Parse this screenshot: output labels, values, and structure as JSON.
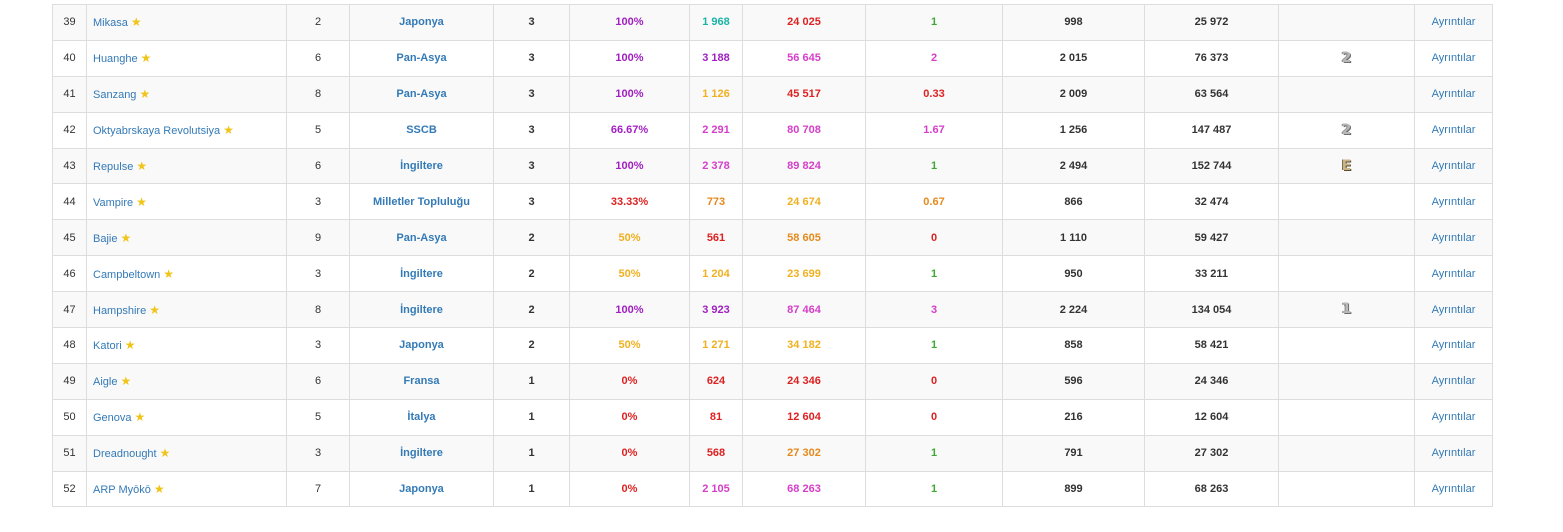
{
  "detail_label": "Ayrıntılar",
  "colors": {
    "link": "#337ab7",
    "red": "#dd2222",
    "orange": "#e58a1d",
    "yellow": "#f0b020",
    "green": "#3fa834",
    "teal": "#19b3a7",
    "purple": "#a11fc2",
    "magenta": "#d53ec8",
    "star": "#f0c419"
  },
  "rows": [
    {
      "rank": "39",
      "ship": "Mikasa",
      "tier": "2",
      "nation": "Japonya",
      "battles": "3",
      "winrate": "100%",
      "winrate_color": "purple",
      "dmg": "1 968",
      "dmg_color": "teal",
      "xp": "24 025",
      "xp_color": "red",
      "kills": "1",
      "kills_color": "green",
      "avg_frags": "998",
      "total": "25 972",
      "medal": ""
    },
    {
      "rank": "40",
      "ship": "Huanghe",
      "tier": "6",
      "nation": "Pan-Asya",
      "battles": "3",
      "winrate": "100%",
      "winrate_color": "purple",
      "dmg": "3 188",
      "dmg_color": "purple",
      "xp": "56 645",
      "xp_color": "magenta",
      "kills": "2",
      "kills_color": "magenta",
      "avg_frags": "2 015",
      "total": "76 373",
      "medal": "2"
    },
    {
      "rank": "41",
      "ship": "Sanzang",
      "tier": "8",
      "nation": "Pan-Asya",
      "battles": "3",
      "winrate": "100%",
      "winrate_color": "purple",
      "dmg": "1 126",
      "dmg_color": "yellow",
      "xp": "45 517",
      "xp_color": "red",
      "kills": "0.33",
      "kills_color": "red",
      "avg_frags": "2 009",
      "total": "63 564",
      "medal": ""
    },
    {
      "rank": "42",
      "ship": "Oktyabrskaya Revolutsiya",
      "tier": "5",
      "nation": "SSCB",
      "battles": "3",
      "winrate": "66.67%",
      "winrate_color": "purple",
      "dmg": "2 291",
      "dmg_color": "magenta",
      "xp": "80 708",
      "xp_color": "magenta",
      "kills": "1.67",
      "kills_color": "magenta",
      "avg_frags": "1 256",
      "total": "147 487",
      "medal": "2"
    },
    {
      "rank": "43",
      "ship": "Repulse",
      "tier": "6",
      "nation": "İngiltere",
      "battles": "3",
      "winrate": "100%",
      "winrate_color": "purple",
      "dmg": "2 378",
      "dmg_color": "magenta",
      "xp": "89 824",
      "xp_color": "magenta",
      "kills": "1",
      "kills_color": "green",
      "avg_frags": "2 494",
      "total": "152 744",
      "medal": "E"
    },
    {
      "rank": "44",
      "ship": "Vampire",
      "tier": "3",
      "nation": "Milletler Topluluğu",
      "battles": "3",
      "winrate": "33.33%",
      "winrate_color": "red",
      "dmg": "773",
      "dmg_color": "orange",
      "xp": "24 674",
      "xp_color": "yellow",
      "kills": "0.67",
      "kills_color": "orange",
      "avg_frags": "866",
      "total": "32 474",
      "medal": ""
    },
    {
      "rank": "45",
      "ship": "Bajie",
      "tier": "9",
      "nation": "Pan-Asya",
      "battles": "2",
      "winrate": "50%",
      "winrate_color": "yellow",
      "dmg": "561",
      "dmg_color": "red",
      "xp": "58 605",
      "xp_color": "orange",
      "kills": "0",
      "kills_color": "red",
      "avg_frags": "1 110",
      "total": "59 427",
      "medal": ""
    },
    {
      "rank": "46",
      "ship": "Campbeltown",
      "tier": "3",
      "nation": "İngiltere",
      "battles": "2",
      "winrate": "50%",
      "winrate_color": "yellow",
      "dmg": "1 204",
      "dmg_color": "yellow",
      "xp": "23 699",
      "xp_color": "yellow",
      "kills": "1",
      "kills_color": "green",
      "avg_frags": "950",
      "total": "33 211",
      "medal": ""
    },
    {
      "rank": "47",
      "ship": "Hampshire",
      "tier": "8",
      "nation": "İngiltere",
      "battles": "2",
      "winrate": "100%",
      "winrate_color": "purple",
      "dmg": "3 923",
      "dmg_color": "purple",
      "xp": "87 464",
      "xp_color": "magenta",
      "kills": "3",
      "kills_color": "magenta",
      "avg_frags": "2 224",
      "total": "134 054",
      "medal": "1"
    },
    {
      "rank": "48",
      "ship": "Katori",
      "tier": "3",
      "nation": "Japonya",
      "battles": "2",
      "winrate": "50%",
      "winrate_color": "yellow",
      "dmg": "1 271",
      "dmg_color": "yellow",
      "xp": "34 182",
      "xp_color": "yellow",
      "kills": "1",
      "kills_color": "green",
      "avg_frags": "858",
      "total": "58 421",
      "medal": ""
    },
    {
      "rank": "49",
      "ship": "Aigle",
      "tier": "6",
      "nation": "Fransa",
      "battles": "1",
      "winrate": "0%",
      "winrate_color": "red",
      "dmg": "624",
      "dmg_color": "red",
      "xp": "24 346",
      "xp_color": "red",
      "kills": "0",
      "kills_color": "red",
      "avg_frags": "596",
      "total": "24 346",
      "medal": ""
    },
    {
      "rank": "50",
      "ship": "Genova",
      "tier": "5",
      "nation": "İtalya",
      "battles": "1",
      "winrate": "0%",
      "winrate_color": "red",
      "dmg": "81",
      "dmg_color": "red",
      "xp": "12 604",
      "xp_color": "red",
      "kills": "0",
      "kills_color": "red",
      "avg_frags": "216",
      "total": "12 604",
      "medal": ""
    },
    {
      "rank": "51",
      "ship": "Dreadnought",
      "tier": "3",
      "nation": "İngiltere",
      "battles": "1",
      "winrate": "0%",
      "winrate_color": "red",
      "dmg": "568",
      "dmg_color": "red",
      "xp": "27 302",
      "xp_color": "orange",
      "kills": "1",
      "kills_color": "green",
      "avg_frags": "791",
      "total": "27 302",
      "medal": ""
    },
    {
      "rank": "52",
      "ship": "ARP Myōkō",
      "tier": "7",
      "nation": "Japonya",
      "battles": "1",
      "winrate": "0%",
      "winrate_color": "red",
      "dmg": "2 105",
      "dmg_color": "magenta",
      "xp": "68 263",
      "xp_color": "magenta",
      "kills": "1",
      "kills_color": "green",
      "avg_frags": "899",
      "total": "68 263",
      "medal": ""
    }
  ]
}
